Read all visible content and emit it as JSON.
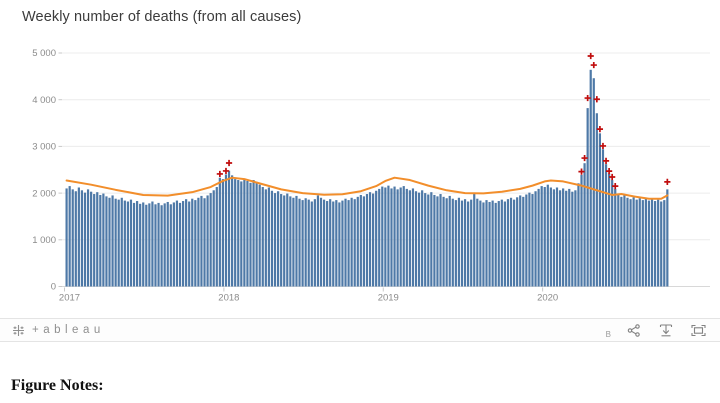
{
  "figure_notes_label": "Figure Notes:",
  "toolbar": {
    "logo_text": "+ableau",
    "badge_text": "B"
  },
  "colors": {
    "bar": "#4e79a7",
    "baseline_line": "#f28e2b",
    "excess_marker": "#c00d0d",
    "gridline": "#ececec",
    "axis_line": "#d8d8d8",
    "tick_text": "#8b8b8b",
    "toolbar_icon": "#828282"
  },
  "chart_data": {
    "type": "bar",
    "title": "Weekly number of deaths (from all causes)",
    "xlabel": "",
    "ylabel": "",
    "x_ticks": [
      "2017",
      "2018",
      "2019",
      "2020"
    ],
    "weeks_per_year": 52,
    "y_ticks": [
      0,
      1000,
      2000,
      3000,
      4000,
      5000
    ],
    "y_tick_labels": [
      "0",
      "1 000",
      "2 000",
      "3 000",
      "4 000",
      "5 000"
    ],
    "ylim": [
      0,
      5000
    ],
    "grid": "horizontal",
    "legend": "none",
    "bars": [
      2100,
      2150,
      2080,
      2040,
      2120,
      2060,
      2010,
      2080,
      2030,
      1980,
      2020,
      1960,
      1990,
      1930,
      1900,
      1950,
      1880,
      1860,
      1900,
      1840,
      1820,
      1860,
      1790,
      1830,
      1770,
      1800,
      1750,
      1780,
      1820,
      1760,
      1790,
      1740,
      1780,
      1810,
      1760,
      1800,
      1840,
      1790,
      1830,
      1870,
      1820,
      1880,
      1850,
      1900,
      1940,
      1890,
      1950,
      2000,
      2060,
      2130,
      2330,
      2300,
      2400,
      2480,
      2380,
      2300,
      2280,
      2250,
      2300,
      2260,
      2220,
      2280,
      2240,
      2180,
      2130,
      2080,
      2120,
      2050,
      2000,
      2040,
      1980,
      1950,
      1990,
      1930,
      1900,
      1940,
      1880,
      1850,
      1890,
      1860,
      1820,
      1870,
      1950,
      1900,
      1860,
      1830,
      1870,
      1820,
      1850,
      1800,
      1840,
      1880,
      1850,
      1900,
      1870,
      1920,
      1960,
      1930,
      1980,
      2020,
      1990,
      2050,
      2090,
      2140,
      2120,
      2160,
      2100,
      2140,
      2080,
      2120,
      2150,
      2090,
      2060,
      2100,
      2040,
      2010,
      2060,
      2000,
      1970,
      2020,
      1960,
      1930,
      1980,
      1920,
      1890,
      1940,
      1880,
      1850,
      1900,
      1840,
      1870,
      1820,
      1860,
      2000,
      1880,
      1840,
      1800,
      1850,
      1810,
      1840,
      1790,
      1830,
      1860,
      1820,
      1870,
      1900,
      1860,
      1910,
      1950,
      1920,
      1970,
      2010,
      1980,
      2040,
      2090,
      2150,
      2130,
      2180,
      2120,
      2080,
      2120,
      2060,
      2100,
      2050,
      2090,
      2030,
      2060,
      2210,
      2390,
      2640,
      3820,
      4640,
      4460,
      3710,
      3280,
      2940,
      2620,
      2420,
      2280,
      2090,
      1980,
      1920,
      1950,
      1900,
      1870,
      1910,
      1860,
      1890,
      1850,
      1880,
      1840,
      1870,
      1830,
      1860,
      1820,
      1850,
      2080
    ],
    "baseline_points": [
      [
        0,
        2270
      ],
      [
        8,
        2180
      ],
      [
        16,
        2070
      ],
      [
        25,
        1960
      ],
      [
        33,
        1945
      ],
      [
        41,
        2020
      ],
      [
        47,
        2130
      ],
      [
        51,
        2260
      ],
      [
        54,
        2330
      ],
      [
        58,
        2300
      ],
      [
        64,
        2190
      ],
      [
        70,
        2080
      ],
      [
        77,
        2000
      ],
      [
        84,
        1965
      ],
      [
        90,
        1975
      ],
      [
        96,
        2040
      ],
      [
        101,
        2150
      ],
      [
        104,
        2260
      ],
      [
        107,
        2330
      ],
      [
        112,
        2280
      ],
      [
        118,
        2160
      ],
      [
        124,
        2060
      ],
      [
        130,
        2000
      ],
      [
        136,
        1995
      ],
      [
        142,
        2030
      ],
      [
        148,
        2090
      ],
      [
        152,
        2160
      ],
      [
        156,
        2250
      ],
      [
        158,
        2270
      ],
      [
        162,
        2250
      ],
      [
        168,
        2160
      ],
      [
        172,
        2080
      ],
      [
        176,
        2000
      ],
      [
        178,
        1960
      ],
      [
        181,
        1980
      ],
      [
        185,
        1930
      ],
      [
        190,
        1880
      ],
      [
        194,
        1880
      ],
      [
        196,
        1950
      ]
    ],
    "excess_markers": [
      [
        50,
        2410
      ],
      [
        52,
        2475
      ],
      [
        53,
        2645
      ],
      [
        168,
        2460
      ],
      [
        169,
        2750
      ],
      [
        170,
        4035
      ],
      [
        171,
        4935
      ],
      [
        172,
        4742
      ],
      [
        173,
        4010
      ],
      [
        174,
        3370
      ],
      [
        175,
        3010
      ],
      [
        176,
        2690
      ],
      [
        177,
        2470
      ],
      [
        178,
        2345
      ],
      [
        179,
        2150
      ],
      [
        196,
        2240
      ]
    ]
  }
}
